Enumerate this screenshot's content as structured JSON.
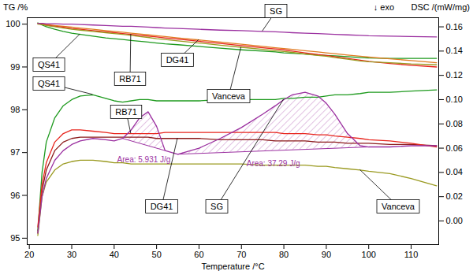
{
  "chart_data": {
    "type": "line",
    "x_label": "Temperature /°C",
    "y_label": "TG /%",
    "y2_label": "DSC /(mW/mg)",
    "annotation": "↓ exo",
    "x": [
      22,
      23,
      24,
      26,
      28,
      30,
      32,
      35,
      38,
      40,
      42,
      44,
      46,
      48,
      50,
      52,
      55,
      60,
      65,
      70,
      75,
      78,
      80,
      82,
      85,
      88,
      90,
      92,
      95,
      98,
      100,
      105,
      110,
      116
    ],
    "xlim": [
      19.5,
      116.5
    ],
    "xticks": [
      20,
      30,
      40,
      50,
      60,
      70,
      80,
      90,
      100,
      110
    ],
    "ylim": [
      94.85,
      100.15
    ],
    "yticks": [
      95,
      96,
      97,
      98,
      99,
      100
    ],
    "y2lim": [
      -0.0195,
      0.1675
    ],
    "y2ticks": [
      {
        "value": 0,
        "label": "0.00"
      },
      {
        "value": 0.02,
        "label": "0.02"
      },
      {
        "value": 0.04,
        "label": "0.04"
      },
      {
        "value": 0.06,
        "label": "0.06"
      },
      {
        "value": 0.08,
        "label": "0.08"
      },
      {
        "value": 0.1,
        "label": "0.10"
      },
      {
        "value": 0.12,
        "label": "0.12"
      },
      {
        "value": 0.14,
        "label": "0.14"
      },
      {
        "value": 0.16,
        "label": "0.16"
      }
    ],
    "series": [
      {
        "name": "QS41",
        "color": "#1e9a1e",
        "values": [
          100.03,
          99.98,
          99.94,
          99.88,
          99.83,
          99.79,
          99.76,
          99.72,
          99.68,
          99.66,
          99.64,
          99.62,
          99.6,
          99.58,
          99.56,
          99.54,
          99.52,
          99.48,
          99.44,
          99.4,
          99.37,
          99.35,
          99.33,
          99.32,
          99.3,
          99.28,
          99.27,
          99.26,
          99.24,
          99.22,
          99.21,
          99.2,
          99.2,
          99.2
        ]
      },
      {
        "name": "DG41",
        "color": "#e07b20",
        "values": [
          100.02,
          100.01,
          99.99,
          99.97,
          99.95,
          99.93,
          99.91,
          99.88,
          99.85,
          99.83,
          99.81,
          99.79,
          99.77,
          99.75,
          99.73,
          99.71,
          99.68,
          99.63,
          99.58,
          99.53,
          99.48,
          99.45,
          99.43,
          99.41,
          99.38,
          99.35,
          99.33,
          99.31,
          99.28,
          99.25,
          99.23,
          99.19,
          99.15,
          99.1
        ]
      },
      {
        "name": "RB71",
        "color": "#e8241c",
        "values": [
          100.02,
          100.0,
          99.98,
          99.95,
          99.93,
          99.9,
          99.88,
          99.85,
          99.82,
          99.8,
          99.78,
          99.76,
          99.74,
          99.72,
          99.7,
          99.68,
          99.65,
          99.6,
          99.55,
          99.5,
          99.45,
          99.42,
          99.4,
          99.37,
          99.33,
          99.29,
          99.27,
          99.24,
          99.2,
          99.16,
          99.13,
          99.08,
          99.04,
          99.0
        ]
      },
      {
        "name": "Vanceva",
        "color": "#9a9a20",
        "values": [
          100.0,
          99.99,
          99.97,
          99.94,
          99.91,
          99.88,
          99.86,
          99.83,
          99.8,
          99.78,
          99.76,
          99.74,
          99.71,
          99.69,
          99.66,
          99.64,
          99.61,
          99.56,
          99.51,
          99.46,
          99.41,
          99.38,
          99.36,
          99.34,
          99.3,
          99.27,
          99.25,
          99.22,
          99.18,
          99.14,
          99.12,
          99.1,
          99.07,
          99.05
        ]
      },
      {
        "name": "SG",
        "color": "#9b30a0",
        "values": [
          100.02,
          100.02,
          100.01,
          100.01,
          100.0,
          100.0,
          99.99,
          99.98,
          99.97,
          99.96,
          99.95,
          99.95,
          99.94,
          99.93,
          99.92,
          99.91,
          99.9,
          99.88,
          99.86,
          99.85,
          99.83,
          99.82,
          99.81,
          99.8,
          99.79,
          99.78,
          99.77,
          99.76,
          99.75,
          99.74,
          99.73,
          99.72,
          99.71,
          99.7
        ]
      },
      {
        "name": "QS41",
        "color": "#1e9a1e",
        "axis": "y2",
        "values": [
          -0.008,
          0.04,
          0.065,
          0.085,
          0.095,
          0.1,
          0.103,
          0.104,
          0.101,
          0.099,
          0.098,
          0.099,
          0.1,
          0.1,
          0.099,
          0.099,
          0.099,
          0.099,
          0.1,
          0.1,
          0.1,
          0.1,
          0.101,
          0.101,
          0.102,
          0.102,
          0.103,
          0.104,
          0.104,
          0.105,
          0.106,
          0.106,
          0.107,
          0.108
        ]
      },
      {
        "name": "DG41",
        "color": "#8b1a1a",
        "axis": "y2",
        "values": [
          -0.01,
          0.025,
          0.042,
          0.058,
          0.065,
          0.068,
          0.069,
          0.069,
          0.069,
          0.069,
          0.069,
          0.069,
          0.069,
          0.069,
          0.068,
          0.068,
          0.068,
          0.068,
          0.067,
          0.067,
          0.067,
          0.066,
          0.066,
          0.066,
          0.066,
          0.065,
          0.065,
          0.065,
          0.064,
          0.064,
          0.064,
          0.063,
          0.063,
          0.062
        ]
      },
      {
        "name": "RB71",
        "color": "#e8241c",
        "axis": "y2",
        "values": [
          -0.005,
          0.03,
          0.048,
          0.065,
          0.072,
          0.075,
          0.075,
          0.074,
          0.073,
          0.072,
          0.072,
          0.072,
          0.072,
          0.072,
          0.072,
          0.073,
          0.073,
          0.073,
          0.073,
          0.073,
          0.073,
          0.073,
          0.072,
          0.072,
          0.072,
          0.071,
          0.071,
          0.07,
          0.069,
          0.068,
          0.067,
          0.066,
          0.064,
          0.061
        ]
      },
      {
        "name": "Vanceva",
        "color": "#9a9a20",
        "axis": "y2",
        "values": [
          -0.012,
          0.02,
          0.032,
          0.042,
          0.047,
          0.049,
          0.05,
          0.05,
          0.049,
          0.048,
          0.048,
          0.047,
          0.047,
          0.047,
          0.047,
          0.047,
          0.047,
          0.047,
          0.047,
          0.047,
          0.046,
          0.046,
          0.046,
          0.046,
          0.046,
          0.045,
          0.045,
          0.044,
          0.043,
          0.042,
          0.041,
          0.039,
          0.035,
          0.029
        ]
      },
      {
        "name": "SG",
        "color": "#9b30a0",
        "axis": "y2",
        "values": [
          -0.01,
          0.02,
          0.035,
          0.05,
          0.058,
          0.063,
          0.066,
          0.068,
          0.067,
          0.066,
          0.068,
          0.075,
          0.085,
          0.09,
          0.078,
          0.058,
          0.055,
          0.06,
          0.068,
          0.077,
          0.088,
          0.095,
          0.1,
          0.104,
          0.106,
          0.103,
          0.097,
          0.088,
          0.072,
          0.062,
          0.061,
          0.061,
          0.062,
          0.062
        ]
      }
    ],
    "peaks": [
      {
        "series": "SG",
        "from": 42,
        "to": 52,
        "label": "Area: 5.931 J/g"
      },
      {
        "series": "SG",
        "from": 55,
        "to": 100,
        "label": "Area: 37.29 J/g"
      }
    ]
  }
}
